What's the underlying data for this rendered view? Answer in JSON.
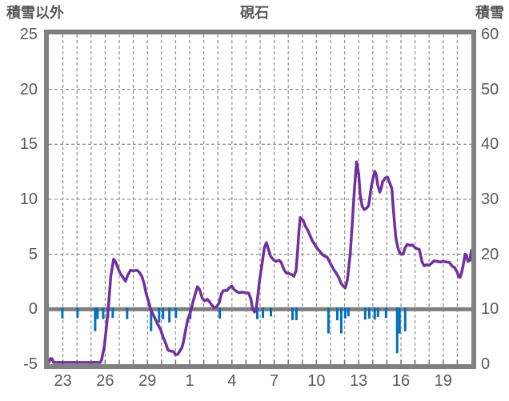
{
  "chart_data": {
    "type": "line+bar",
    "title": "硯石",
    "left_axis": {
      "label": "積雪以外",
      "min": -5,
      "max": 25,
      "ticks": [
        25,
        20,
        15,
        10,
        5,
        0,
        -5
      ]
    },
    "right_axis": {
      "label": "積雪",
      "min": 0,
      "max": 60,
      "ticks": [
        60,
        50,
        40,
        30,
        20,
        10,
        0
      ]
    },
    "x_axis": {
      "domain_days": [
        0,
        30
      ],
      "gridline_every_days": 1,
      "tick_labels": [
        {
          "t": 1,
          "label": "23"
        },
        {
          "t": 4,
          "label": "26"
        },
        {
          "t": 7,
          "label": "29"
        },
        {
          "t": 10,
          "label": "1"
        },
        {
          "t": 13,
          "label": "4"
        },
        {
          "t": 16,
          "label": "7"
        },
        {
          "t": 19,
          "label": "10"
        },
        {
          "t": 22,
          "label": "13"
        },
        {
          "t": 25,
          "label": "16"
        },
        {
          "t": 28,
          "label": "19"
        }
      ]
    },
    "grid": {
      "h_gridlines_left_values": [
        20,
        15,
        10,
        5
      ],
      "zero_line_left_value": 0,
      "style": "dashed"
    },
    "series": [
      {
        "name": "積雪",
        "type": "line",
        "axis": "right",
        "color": "#7030A0",
        "points": [
          [
            0,
            0.3
          ],
          [
            0.11,
            1.0
          ],
          [
            0.23,
            1.0
          ],
          [
            0.34,
            0.3
          ],
          [
            3.65,
            0.3
          ],
          [
            3.75,
            0.8
          ],
          [
            3.95,
            3.4
          ],
          [
            4.1,
            7.0
          ],
          [
            4.25,
            11.0
          ],
          [
            4.4,
            16.0
          ],
          [
            4.6,
            19.1
          ],
          [
            4.75,
            18.6
          ],
          [
            4.95,
            17.2
          ],
          [
            5.1,
            16.4
          ],
          [
            5.45,
            15.1
          ],
          [
            5.6,
            16.2
          ],
          [
            5.8,
            17.1
          ],
          [
            6.0,
            17.0
          ],
          [
            6.25,
            17.1
          ],
          [
            6.4,
            16.8
          ],
          [
            6.6,
            16.0
          ],
          [
            6.75,
            14.8
          ],
          [
            6.9,
            13.0
          ],
          [
            7.1,
            11.2
          ],
          [
            7.25,
            9.8
          ],
          [
            7.45,
            8.8
          ],
          [
            7.6,
            8.0
          ],
          [
            7.75,
            7.2
          ],
          [
            7.95,
            6.2
          ],
          [
            8.1,
            5.0
          ],
          [
            8.3,
            3.8
          ],
          [
            8.45,
            2.6
          ],
          [
            8.6,
            2.4
          ],
          [
            8.85,
            2.3
          ],
          [
            9.0,
            1.7
          ],
          [
            9.15,
            1.8
          ],
          [
            9.3,
            2.4
          ],
          [
            9.45,
            3.0
          ],
          [
            9.55,
            4.0
          ],
          [
            9.7,
            6.0
          ],
          [
            9.85,
            8.0
          ],
          [
            10.05,
            9.4
          ],
          [
            10.2,
            11.0
          ],
          [
            10.4,
            12.8
          ],
          [
            10.55,
            14.1
          ],
          [
            10.7,
            13.6
          ],
          [
            10.9,
            12.0
          ],
          [
            11.05,
            11.5
          ],
          [
            11.25,
            11.8
          ],
          [
            11.4,
            11.4
          ],
          [
            11.55,
            10.8
          ],
          [
            11.75,
            10.3
          ],
          [
            11.9,
            10.4
          ],
          [
            12.1,
            11.2
          ],
          [
            12.25,
            12.8
          ],
          [
            12.4,
            13.4
          ],
          [
            12.65,
            13.4
          ],
          [
            12.8,
            13.9
          ],
          [
            13.0,
            14.2
          ],
          [
            13.15,
            13.6
          ],
          [
            13.35,
            13.2
          ],
          [
            13.5,
            13.0
          ],
          [
            13.75,
            13.1
          ],
          [
            13.95,
            13.0
          ],
          [
            14.2,
            12.9
          ],
          [
            14.35,
            11.8
          ],
          [
            14.45,
            10.2
          ],
          [
            14.6,
            9.5
          ],
          [
            14.7,
            9.8
          ],
          [
            14.8,
            11.6
          ],
          [
            14.95,
            15.0
          ],
          [
            15.15,
            18.4
          ],
          [
            15.3,
            21.2
          ],
          [
            15.45,
            22.1
          ],
          [
            15.6,
            20.8
          ],
          [
            15.75,
            19.6
          ],
          [
            15.95,
            19.0
          ],
          [
            16.1,
            18.7
          ],
          [
            16.35,
            18.9
          ],
          [
            16.5,
            18.5
          ],
          [
            16.7,
            17.2
          ],
          [
            16.85,
            16.6
          ],
          [
            17.05,
            16.5
          ],
          [
            17.25,
            16.3
          ],
          [
            17.4,
            16.0
          ],
          [
            17.55,
            17.0
          ],
          [
            17.65,
            20.0
          ],
          [
            17.75,
            24.0
          ],
          [
            17.85,
            26.7
          ],
          [
            18.05,
            26.2
          ],
          [
            18.2,
            25.2
          ],
          [
            18.4,
            24.3
          ],
          [
            18.55,
            23.4
          ],
          [
            18.7,
            22.5
          ],
          [
            18.9,
            21.7
          ],
          [
            19.05,
            21.1
          ],
          [
            19.25,
            20.5
          ],
          [
            19.4,
            20.0
          ],
          [
            19.55,
            19.7
          ],
          [
            19.75,
            19.5
          ],
          [
            19.9,
            18.8
          ],
          [
            20.1,
            17.8
          ],
          [
            20.25,
            17.1
          ],
          [
            20.4,
            16.6
          ],
          [
            20.6,
            15.7
          ],
          [
            20.75,
            14.7
          ],
          [
            20.95,
            14.1
          ],
          [
            21.05,
            13.9
          ],
          [
            21.2,
            15.4
          ],
          [
            21.4,
            20.0
          ],
          [
            21.55,
            26.0
          ],
          [
            21.7,
            32.0
          ],
          [
            21.85,
            36.8
          ],
          [
            22.0,
            34.6
          ],
          [
            22.1,
            30.8
          ],
          [
            22.25,
            28.7
          ],
          [
            22.4,
            28.1
          ],
          [
            22.55,
            28.4
          ],
          [
            22.7,
            28.8
          ],
          [
            22.8,
            30.6
          ],
          [
            22.9,
            32.4
          ],
          [
            23.05,
            34.2
          ],
          [
            23.15,
            35.1
          ],
          [
            23.25,
            34.4
          ],
          [
            23.35,
            32.6
          ],
          [
            23.5,
            31.3
          ],
          [
            23.6,
            32.0
          ],
          [
            23.7,
            33.2
          ],
          [
            23.9,
            33.9
          ],
          [
            24.05,
            34.0
          ],
          [
            24.2,
            33.0
          ],
          [
            24.35,
            32.0
          ],
          [
            24.45,
            28.6
          ],
          [
            24.55,
            25.4
          ],
          [
            24.65,
            22.8
          ],
          [
            24.8,
            21.0
          ],
          [
            24.95,
            20.1
          ],
          [
            25.15,
            20.0
          ],
          [
            25.3,
            21.2
          ],
          [
            25.45,
            21.8
          ],
          [
            25.65,
            21.6
          ],
          [
            25.8,
            21.7
          ],
          [
            26.0,
            21.2
          ],
          [
            26.15,
            21.0
          ],
          [
            26.3,
            20.9
          ],
          [
            26.5,
            18.6
          ],
          [
            26.65,
            17.9
          ],
          [
            26.85,
            18.1
          ],
          [
            27.0,
            18.0
          ],
          [
            27.15,
            18.3
          ],
          [
            27.35,
            18.8
          ],
          [
            27.55,
            18.7
          ],
          [
            27.8,
            18.6
          ],
          [
            28.0,
            18.7
          ],
          [
            28.25,
            18.6
          ],
          [
            28.45,
            18.5
          ],
          [
            28.65,
            17.8
          ],
          [
            28.8,
            17.6
          ],
          [
            29.0,
            16.7
          ],
          [
            29.1,
            15.9
          ],
          [
            29.2,
            15.8
          ],
          [
            29.3,
            16.6
          ],
          [
            29.45,
            18.4
          ],
          [
            29.55,
            20.0
          ],
          [
            29.65,
            19.9
          ],
          [
            29.75,
            18.7
          ],
          [
            29.9,
            18.9
          ],
          [
            30.0,
            20.7
          ]
        ]
      },
      {
        "name": "積雪以外",
        "type": "bar",
        "axis": "left",
        "color": "#0070C0",
        "bars": [
          [
            0.96,
            -0.85
          ],
          [
            2.04,
            -0.8
          ],
          [
            3.29,
            -2.0
          ],
          [
            3.46,
            -0.9
          ],
          [
            3.86,
            -0.9
          ],
          [
            4.2,
            -0.8
          ],
          [
            4.54,
            -0.8
          ],
          [
            5.56,
            -0.9
          ],
          [
            7.26,
            -2.0
          ],
          [
            7.83,
            -1.2
          ],
          [
            8.11,
            -0.9
          ],
          [
            8.56,
            -1.2
          ],
          [
            9.02,
            -0.8
          ],
          [
            10.04,
            -0.9
          ],
          [
            12.14,
            -0.85
          ],
          [
            14.8,
            -0.9
          ],
          [
            15.2,
            -0.8
          ],
          [
            15.77,
            -0.65
          ],
          [
            17.3,
            -1.0
          ],
          [
            17.58,
            -1.0
          ],
          [
            19.85,
            -2.2
          ],
          [
            20.48,
            -1.0
          ],
          [
            20.76,
            -2.2
          ],
          [
            21.04,
            -0.85
          ],
          [
            21.27,
            -0.65
          ],
          [
            22.46,
            -0.95
          ],
          [
            22.75,
            -0.85
          ],
          [
            23.14,
            -0.95
          ],
          [
            23.37,
            -0.7
          ],
          [
            23.94,
            -0.8
          ],
          [
            24.73,
            -4.0
          ],
          [
            24.9,
            -2.2
          ],
          [
            25.3,
            -2.0
          ]
        ]
      }
    ],
    "colors": {
      "line": "#7030A0",
      "bar": "#0070C0",
      "frame": "#808080",
      "zero_line": "#808080",
      "gridline": "#999999",
      "text": "#595959"
    }
  }
}
